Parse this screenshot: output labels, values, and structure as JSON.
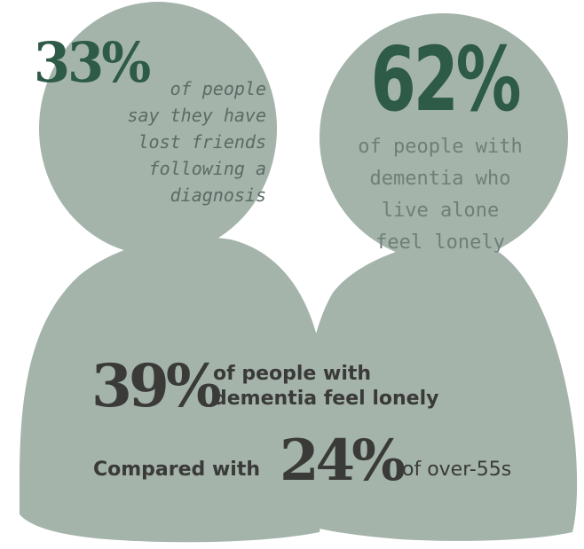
{
  "colors": {
    "figure": "#a4b4ab",
    "green_pct": "#2e5a48",
    "dark_text": "#3a3a38",
    "mono_text": "#5b6a63",
    "stat2_text": "#6e7f77"
  },
  "stats": {
    "stat1": {
      "percent": "33%",
      "text": "of people\nsay they have\nlost friends\nfollowing a\ndiagnosis"
    },
    "stat2": {
      "percent": "62%",
      "text": "of people with\ndementia who\nlive alone\nfeel lonely"
    },
    "stat3": {
      "percent": "39%",
      "text": "of people with\ndementia feel lonely"
    },
    "comparison": {
      "prefix": "Compared with",
      "percent": "24%",
      "suffix": "of over-55s"
    }
  }
}
